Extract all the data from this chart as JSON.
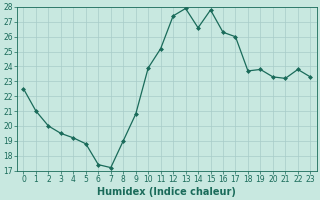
{
  "x": [
    0,
    1,
    2,
    3,
    4,
    5,
    6,
    7,
    8,
    9,
    10,
    11,
    12,
    13,
    14,
    15,
    16,
    17,
    18,
    19,
    20,
    21,
    22,
    23
  ],
  "y": [
    22.5,
    21.0,
    20.0,
    19.5,
    19.2,
    18.8,
    17.4,
    17.2,
    19.0,
    20.8,
    23.9,
    25.2,
    27.4,
    27.9,
    26.6,
    27.8,
    26.3,
    26.0,
    23.7,
    23.8,
    23.3,
    23.2,
    23.8,
    23.3
  ],
  "line_color": "#1a6b5a",
  "marker": "D",
  "marker_size": 2,
  "bg_color": "#c8e8e0",
  "grid_color": "#a8ccc8",
  "xlabel": "Humidex (Indice chaleur)",
  "ylim": [
    17,
    28
  ],
  "xlim": [
    -0.5,
    23.5
  ],
  "yticks": [
    17,
    18,
    19,
    20,
    21,
    22,
    23,
    24,
    25,
    26,
    27,
    28
  ],
  "xticks": [
    0,
    1,
    2,
    3,
    4,
    5,
    6,
    7,
    8,
    9,
    10,
    11,
    12,
    13,
    14,
    15,
    16,
    17,
    18,
    19,
    20,
    21,
    22,
    23
  ],
  "tick_fontsize": 5.5,
  "label_fontsize": 7.0
}
